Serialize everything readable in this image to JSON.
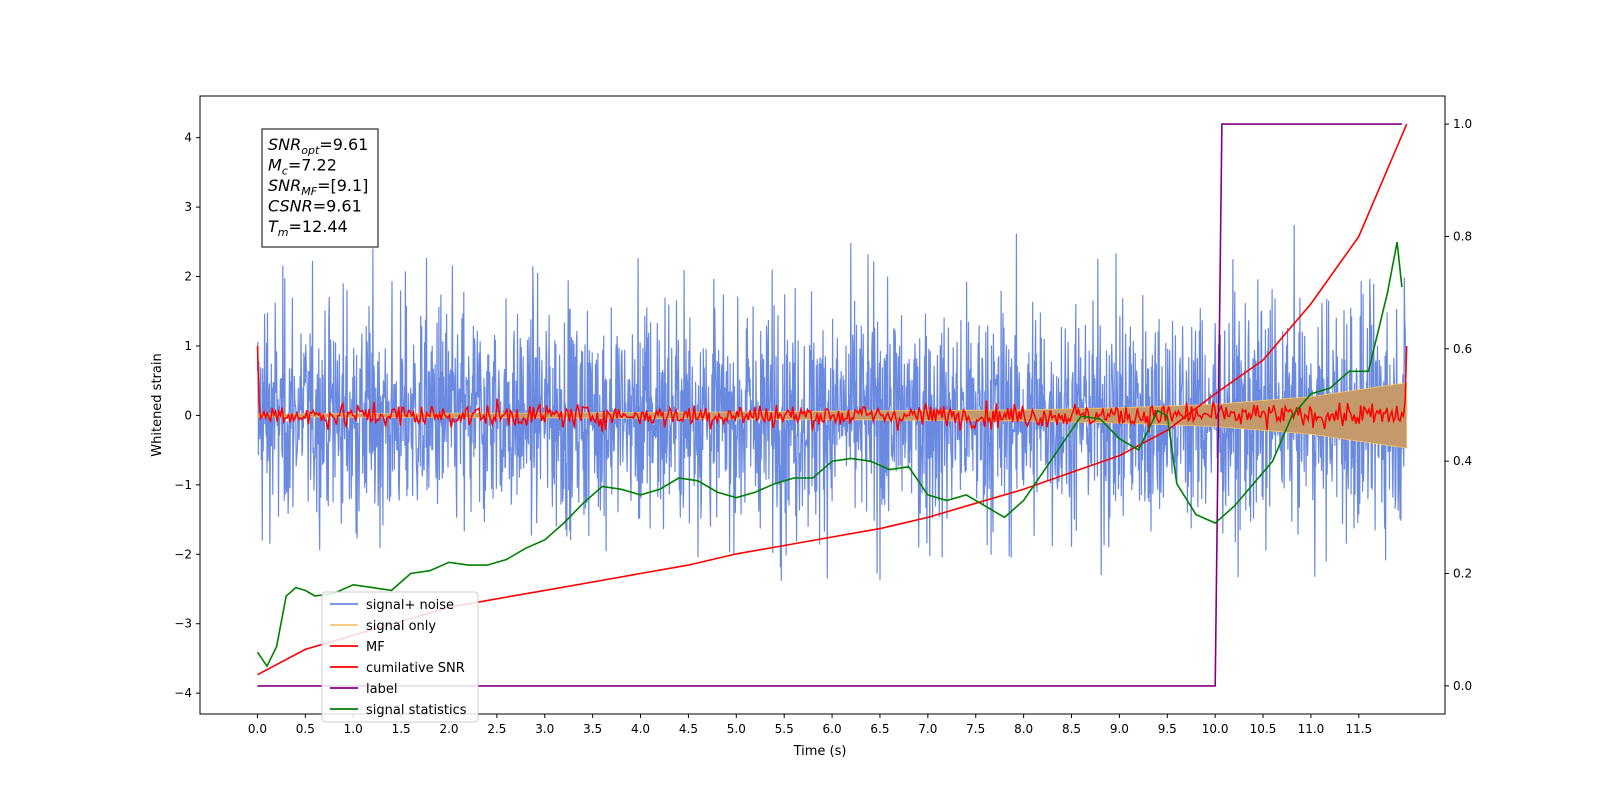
{
  "chart_data": {
    "type": "line",
    "title": "",
    "xlabel": "Time (s)",
    "ylabel": "Whitened strain",
    "ylabel_right": "",
    "xlim": [
      -0.6,
      12.4
    ],
    "ylim": [
      -4.3,
      4.6
    ],
    "ylim_right": [
      -0.05,
      1.05
    ],
    "xticks": [
      0.0,
      0.5,
      1.0,
      1.5,
      2.0,
      2.5,
      3.0,
      3.5,
      4.0,
      4.5,
      5.0,
      5.5,
      6.0,
      6.5,
      7.0,
      7.5,
      8.0,
      8.5,
      9.0,
      9.5,
      10.0,
      10.5,
      11.0,
      11.5
    ],
    "xtick_labels": [
      "0.0",
      "0.5",
      "1.0",
      "1.5",
      "2.0",
      "2.5",
      "3.0",
      "3.5",
      "4.0",
      "4.5",
      "5.0",
      "5.5",
      "6.0",
      "6.5",
      "7.0",
      "7.5",
      "8.0",
      "8.5",
      "9.0",
      "9.5",
      "10.0",
      "10.5",
      "11.0",
      "11.5"
    ],
    "yticks": [
      -4,
      -3,
      -2,
      -1,
      0,
      1,
      2,
      3,
      4
    ],
    "ytick_labels": [
      "−4",
      "−3",
      "−2",
      "−1",
      "0",
      "1",
      "2",
      "3",
      "4"
    ],
    "yticks_right": [
      0.0,
      0.2,
      0.4,
      0.6,
      0.8,
      1.0
    ],
    "ytick_labels_right": [
      "0.0",
      "0.2",
      "0.4",
      "0.6",
      "0.8",
      "1.0"
    ],
    "legend_position": "lower-left",
    "series": [
      {
        "name": "signal+ noise",
        "color": "#6a89e0",
        "axis": "left",
        "description_values": "dense noise band, typically between -2.3 and 2.6, extremes near -3.9 and 4.2, x 0.0–12.0"
      },
      {
        "name": "signal only",
        "color": "#f5c56b",
        "axis": "left",
        "envelope_x": [
          0.0,
          2.0,
          4.0,
          6.0,
          8.0,
          9.0,
          10.0,
          11.0,
          12.0
        ],
        "envelope_amp": [
          0.02,
          0.03,
          0.04,
          0.06,
          0.08,
          0.11,
          0.16,
          0.27,
          0.47
        ]
      },
      {
        "name": "MF",
        "color": "#ff0000",
        "axis": "left",
        "description_values": "noise fluctuating around 0 (≈ ±0.3), value 1.0 at x=0.0 and x=12.0"
      },
      {
        "name": "cumilative SNR",
        "color": "#ff0000",
        "axis": "right",
        "x": [
          0.0,
          0.5,
          1.0,
          1.5,
          2.0,
          2.5,
          3.0,
          3.5,
          4.0,
          4.5,
          5.0,
          5.5,
          6.0,
          6.5,
          7.0,
          7.5,
          8.0,
          8.5,
          9.0,
          9.5,
          10.0,
          10.5,
          11.0,
          11.5,
          12.0
        ],
        "y": [
          0.02,
          0.065,
          0.09,
          0.115,
          0.14,
          0.155,
          0.17,
          0.185,
          0.2,
          0.215,
          0.235,
          0.25,
          0.265,
          0.28,
          0.3,
          0.325,
          0.35,
          0.38,
          0.41,
          0.455,
          0.52,
          0.58,
          0.68,
          0.8,
          1.0
        ]
      },
      {
        "name": "label",
        "color": "#800080",
        "axis": "right",
        "x": [
          0.0,
          10.0,
          10.07,
          11.95
        ],
        "y": [
          0.0,
          0.0,
          1.0,
          1.0
        ]
      },
      {
        "name": "signal statistics",
        "color": "#008000",
        "axis": "right",
        "x": [
          0.0,
          0.1,
          0.2,
          0.3,
          0.4,
          0.5,
          0.6,
          0.8,
          1.0,
          1.2,
          1.4,
          1.6,
          1.8,
          2.0,
          2.2,
          2.4,
          2.6,
          2.8,
          3.0,
          3.2,
          3.4,
          3.6,
          3.8,
          4.0,
          4.2,
          4.4,
          4.6,
          4.8,
          5.0,
          5.2,
          5.4,
          5.6,
          5.8,
          6.0,
          6.2,
          6.4,
          6.6,
          6.8,
          7.0,
          7.2,
          7.4,
          7.6,
          7.8,
          8.0,
          8.2,
          8.4,
          8.6,
          8.8,
          9.0,
          9.2,
          9.4,
          9.5,
          9.6,
          9.8,
          10.0,
          10.2,
          10.4,
          10.6,
          10.8,
          11.0,
          11.2,
          11.4,
          11.6,
          11.7,
          11.8,
          11.9,
          11.95
        ],
        "y": [
          0.06,
          0.035,
          0.07,
          0.16,
          0.175,
          0.17,
          0.16,
          0.165,
          0.18,
          0.175,
          0.17,
          0.2,
          0.205,
          0.22,
          0.215,
          0.215,
          0.225,
          0.245,
          0.26,
          0.29,
          0.325,
          0.355,
          0.35,
          0.34,
          0.35,
          0.37,
          0.365,
          0.345,
          0.335,
          0.345,
          0.36,
          0.37,
          0.37,
          0.4,
          0.405,
          0.4,
          0.385,
          0.39,
          0.34,
          0.33,
          0.34,
          0.32,
          0.3,
          0.33,
          0.38,
          0.43,
          0.48,
          0.475,
          0.44,
          0.42,
          0.49,
          0.48,
          0.36,
          0.305,
          0.29,
          0.32,
          0.36,
          0.4,
          0.48,
          0.52,
          0.53,
          0.56,
          0.56,
          0.63,
          0.7,
          0.79,
          0.71
        ]
      }
    ],
    "annotation_box": {
      "lines": [
        {
          "name": "SNR",
          "sub": "opt",
          "value": "=9.61"
        },
        {
          "name": "M",
          "sub": "c",
          "value": "=7.22"
        },
        {
          "name": "SNR",
          "sub": "MF",
          "value": "=[9.1]"
        },
        {
          "name": "CSNR",
          "sub": "",
          "value": "=9.61"
        },
        {
          "name": "T",
          "sub": "m",
          "value": "=12.44"
        }
      ]
    }
  }
}
